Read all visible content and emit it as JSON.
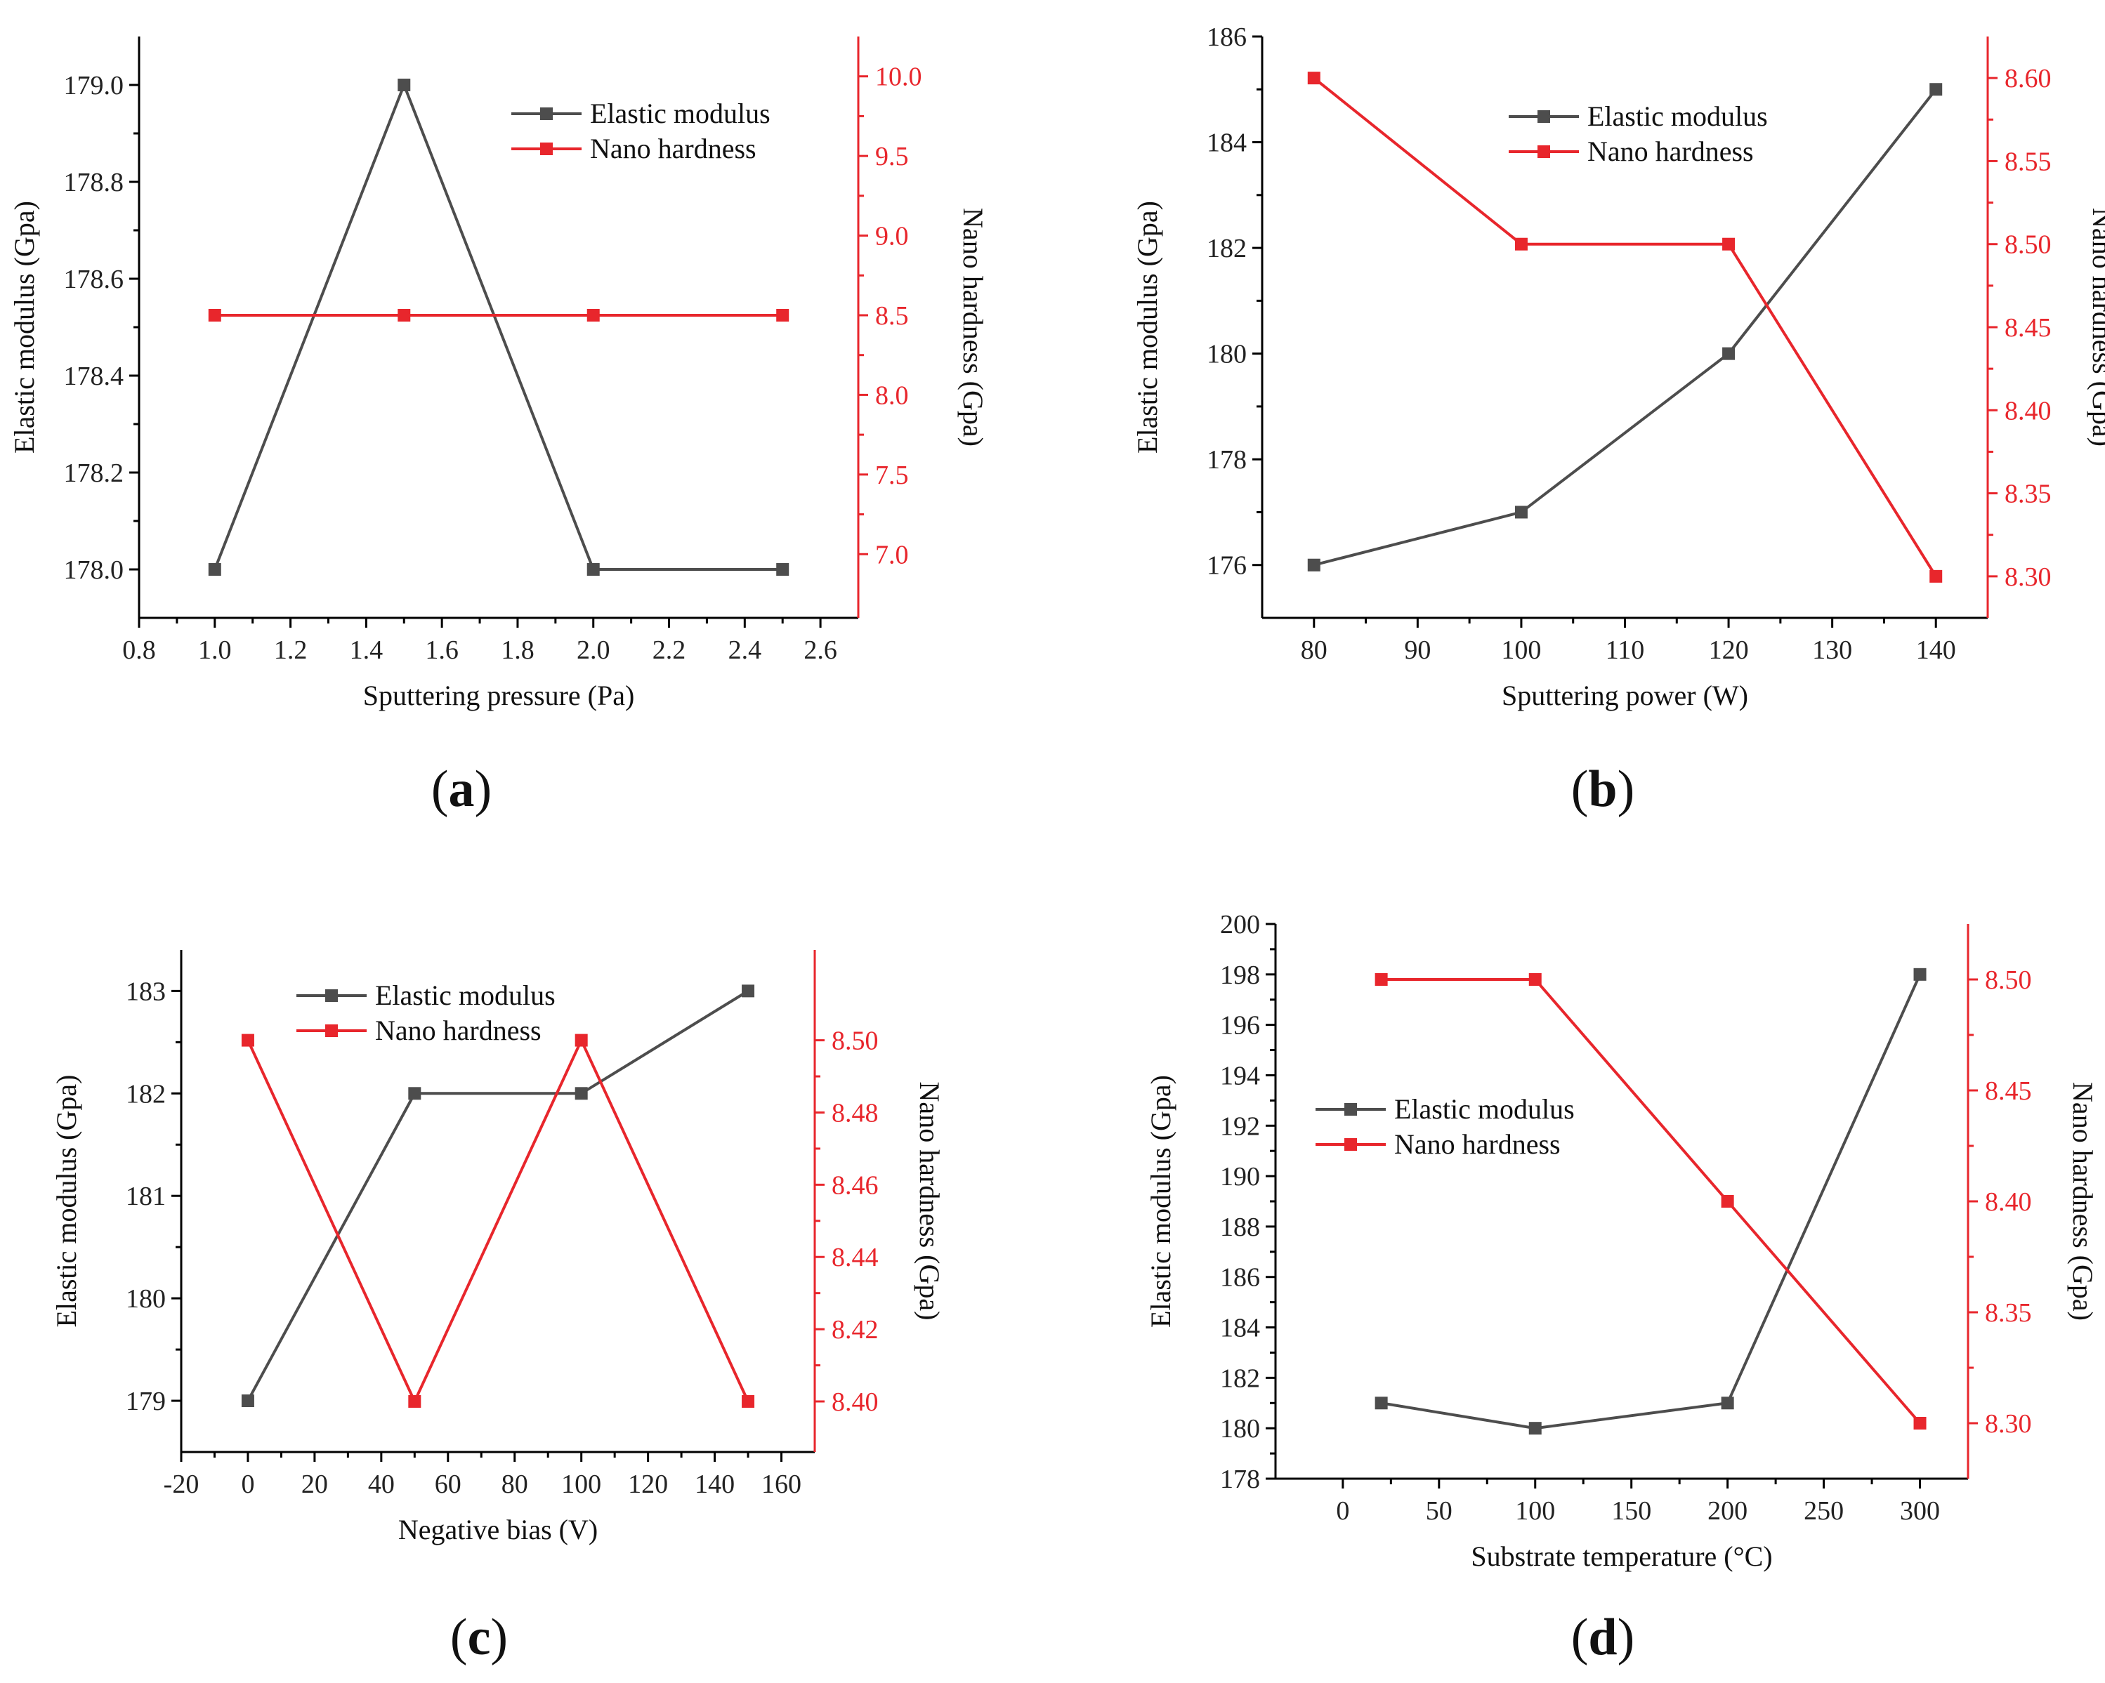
{
  "colors": {
    "elastic": "#4d4d4d",
    "hardness": "#e8262c",
    "axis": "#000000"
  },
  "chart_data": [
    {
      "panel": "a",
      "type": "line",
      "xlabel": "Sputtering pressure (Pa)",
      "ylabel": "Elastic modulus (Gpa)",
      "y2label": "Nano hardness (Gpa)",
      "xlim": [
        0.8,
        2.7
      ],
      "ylim": [
        177.9,
        179.1
      ],
      "y2lim": [
        6.6,
        10.25
      ],
      "xticks": [
        0.8,
        1.0,
        1.2,
        1.4,
        1.6,
        1.8,
        2.0,
        2.2,
        2.4,
        2.6
      ],
      "xtick_labels": [
        "0.8",
        "1.0",
        "1.2",
        "1.4",
        "1.6",
        "1.8",
        "2.0",
        "2.2",
        "2.4",
        "2.6"
      ],
      "yticks": [
        178.0,
        178.2,
        178.4,
        178.6,
        178.8,
        179.0
      ],
      "ytick_labels": [
        "178.0",
        "178.2",
        "178.4",
        "178.6",
        "178.8",
        "179.0"
      ],
      "y2ticks": [
        7.0,
        7.5,
        8.0,
        8.5,
        9.0,
        9.5,
        10.0
      ],
      "y2tick_labels": [
        "7.0",
        "7.5",
        "8.0",
        "8.5",
        "9.0",
        "9.5",
        "10.0"
      ],
      "legend": [
        "Elastic modulus",
        "Nano hardness"
      ],
      "legend_position": "top-right",
      "x": [
        1.0,
        1.5,
        2.0,
        2.5
      ],
      "series": [
        {
          "name": "Elastic modulus",
          "axis": "left",
          "values": [
            178.0,
            179.0,
            178.0,
            178.0
          ]
        },
        {
          "name": "Nano hardness",
          "axis": "right",
          "values": [
            8.5,
            8.5,
            8.5,
            8.5
          ]
        }
      ],
      "label_text": "(a)"
    },
    {
      "panel": "b",
      "type": "line",
      "xlabel": "Sputtering power (W)",
      "ylabel": "Elastic modulus (Gpa)",
      "y2label": "Nano hardness (Gpa)",
      "xlim": [
        75,
        145
      ],
      "ylim": [
        175,
        186
      ],
      "y2lim": [
        8.275,
        8.625
      ],
      "xticks": [
        80,
        90,
        100,
        110,
        120,
        130,
        140
      ],
      "xtick_labels": [
        "80",
        "90",
        "100",
        "110",
        "120",
        "130",
        "140"
      ],
      "yticks": [
        176,
        178,
        180,
        182,
        184,
        186
      ],
      "ytick_labels": [
        "176",
        "178",
        "180",
        "182",
        "184",
        "186"
      ],
      "y2ticks": [
        8.3,
        8.35,
        8.4,
        8.45,
        8.5,
        8.55,
        8.6
      ],
      "y2tick_labels": [
        "8.30",
        "8.35",
        "8.40",
        "8.45",
        "8.50",
        "8.55",
        "8.60"
      ],
      "legend": [
        "Elastic modulus",
        "Nano hardness"
      ],
      "legend_position": "top-center",
      "x": [
        80,
        100,
        120,
        140
      ],
      "series": [
        {
          "name": "Elastic modulus",
          "axis": "left",
          "values": [
            176,
            177,
            180,
            185
          ]
        },
        {
          "name": "Nano hardness",
          "axis": "right",
          "values": [
            8.6,
            8.5,
            8.5,
            8.3
          ]
        }
      ],
      "label_text": "(b)"
    },
    {
      "panel": "c",
      "type": "line",
      "xlabel": "Negative bias (V)",
      "ylabel": "Elastic modulus (Gpa)",
      "y2label": "Nano hardness (Gpa)",
      "xlim": [
        -20,
        170
      ],
      "ylim": [
        178.5,
        183.4
      ],
      "y2lim": [
        8.386,
        8.525
      ],
      "xticks": [
        -20,
        0,
        20,
        40,
        60,
        80,
        100,
        120,
        140,
        160
      ],
      "xtick_labels": [
        "-20",
        "0",
        "20",
        "40",
        "60",
        "80",
        "100",
        "120",
        "140",
        "160"
      ],
      "yticks": [
        179,
        180,
        181,
        182,
        183
      ],
      "ytick_labels": [
        "179",
        "180",
        "181",
        "182",
        "183"
      ],
      "y2ticks": [
        8.4,
        8.42,
        8.44,
        8.46,
        8.48,
        8.5
      ],
      "y2tick_labels": [
        "8.40",
        "8.42",
        "8.44",
        "8.46",
        "8.48",
        "8.50"
      ],
      "legend": [
        "Elastic modulus",
        "Nano hardness"
      ],
      "legend_position": "top-center",
      "x": [
        0,
        50,
        100,
        150
      ],
      "series": [
        {
          "name": "Elastic modulus",
          "axis": "left",
          "values": [
            179,
            182,
            182,
            183
          ]
        },
        {
          "name": "Nano hardness",
          "axis": "right",
          "values": [
            8.5,
            8.4,
            8.5,
            8.4
          ]
        }
      ],
      "label_text": "(c)"
    },
    {
      "panel": "d",
      "type": "line",
      "xlabel": "Substrate temperature (°C)",
      "ylabel": "Elastic modulus (Gpa)",
      "y2label": "Nano hardness (Gpa)",
      "xlim": [
        -35,
        325
      ],
      "ylim": [
        178,
        200
      ],
      "y2lim": [
        8.275,
        8.525
      ],
      "xticks": [
        0,
        50,
        100,
        150,
        200,
        250,
        300
      ],
      "xtick_labels": [
        "0",
        "50",
        "100",
        "150",
        "200",
        "250",
        "300"
      ],
      "yticks": [
        178,
        180,
        182,
        184,
        186,
        188,
        190,
        192,
        194,
        196,
        198,
        200
      ],
      "ytick_labels": [
        "178",
        "180",
        "182",
        "184",
        "186",
        "188",
        "190",
        "192",
        "194",
        "196",
        "198",
        "200"
      ],
      "y2ticks": [
        8.3,
        8.35,
        8.4,
        8.45,
        8.5
      ],
      "y2tick_labels": [
        "8.30",
        "8.35",
        "8.40",
        "8.45",
        "8.50"
      ],
      "legend": [
        "Elastic modulus",
        "Nano hardness"
      ],
      "legend_position": "middle-left",
      "x": [
        20,
        100,
        200,
        300
      ],
      "series": [
        {
          "name": "Elastic modulus",
          "axis": "left",
          "values": [
            181,
            180,
            181,
            198
          ]
        },
        {
          "name": "Nano hardness",
          "axis": "right",
          "values": [
            8.5,
            8.5,
            8.4,
            8.3
          ]
        }
      ],
      "label_text": "(d)"
    }
  ]
}
